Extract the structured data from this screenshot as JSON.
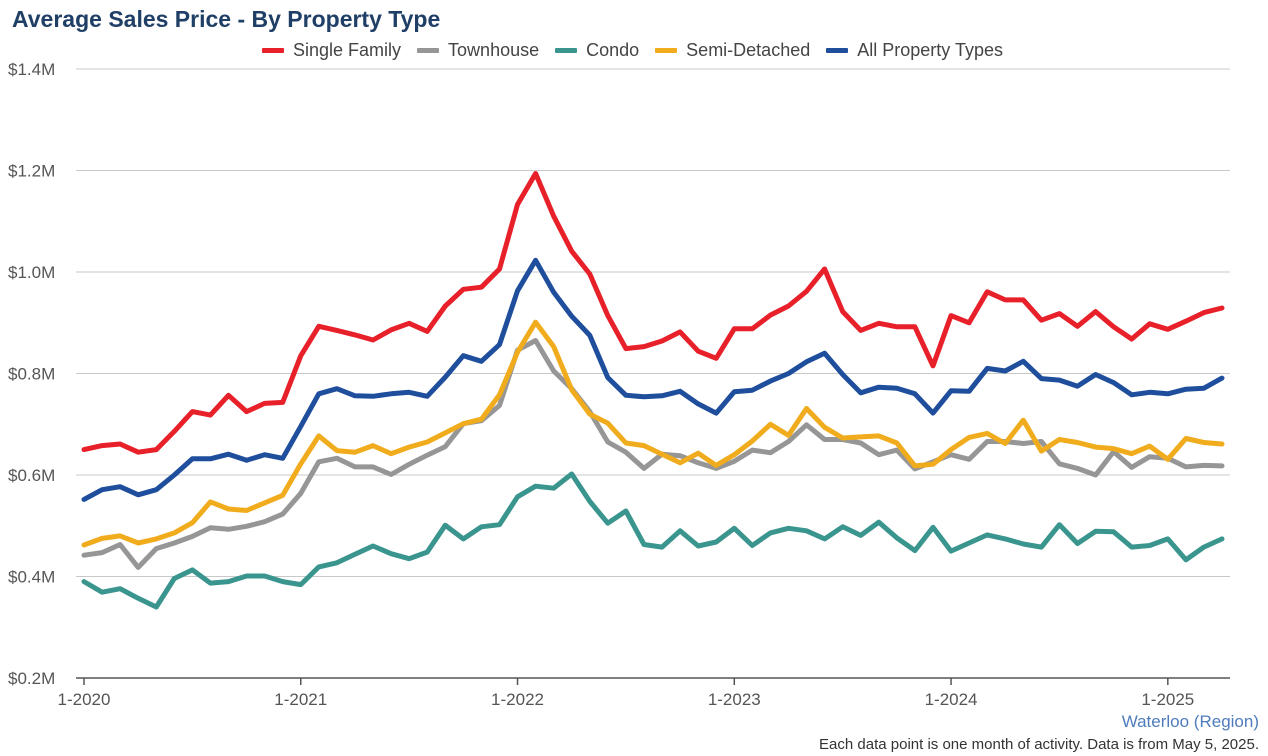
{
  "chart_data": {
    "type": "line",
    "title": "Average Sales Price - By Property Type",
    "xlabel": "",
    "ylabel": "",
    "ylim": [
      200000,
      1400000
    ],
    "y_ticks": [
      {
        "value": 1400000,
        "label": "$1.4M"
      },
      {
        "value": 1200000,
        "label": "$1.2M"
      },
      {
        "value": 1000000,
        "label": "$1.0M"
      },
      {
        "value": 800000,
        "label": "$0.8M"
      },
      {
        "value": 600000,
        "label": "$0.6M"
      },
      {
        "value": 400000,
        "label": "$0.4M"
      },
      {
        "value": 200000,
        "label": "$0.2M"
      }
    ],
    "x_ticks": [
      {
        "month": "2020-01",
        "label": "1-2020"
      },
      {
        "month": "2021-01",
        "label": "1-2021"
      },
      {
        "month": "2022-01",
        "label": "1-2022"
      },
      {
        "month": "2023-01",
        "label": "1-2023"
      },
      {
        "month": "2024-01",
        "label": "1-2024"
      },
      {
        "month": "2025-01",
        "label": "1-2025"
      }
    ],
    "grid": "horizontal",
    "legend_position": "top",
    "months": [
      "2020-01",
      "2020-02",
      "2020-03",
      "2020-04",
      "2020-05",
      "2020-06",
      "2020-07",
      "2020-08",
      "2020-09",
      "2020-10",
      "2020-11",
      "2020-12",
      "2021-01",
      "2021-02",
      "2021-03",
      "2021-04",
      "2021-05",
      "2021-06",
      "2021-07",
      "2021-08",
      "2021-09",
      "2021-10",
      "2021-11",
      "2021-12",
      "2022-01",
      "2022-02",
      "2022-03",
      "2022-04",
      "2022-05",
      "2022-06",
      "2022-07",
      "2022-08",
      "2022-09",
      "2022-10",
      "2022-11",
      "2022-12",
      "2023-01",
      "2023-02",
      "2023-03",
      "2023-04",
      "2023-05",
      "2023-06",
      "2023-07",
      "2023-08",
      "2023-09",
      "2023-10",
      "2023-11",
      "2023-12",
      "2024-01",
      "2024-02",
      "2024-03",
      "2024-04",
      "2024-05",
      "2024-06",
      "2024-07",
      "2024-08",
      "2024-09",
      "2024-10",
      "2024-11",
      "2024-12",
      "2025-01",
      "2025-02",
      "2025-03",
      "2025-04"
    ],
    "series": [
      {
        "name": "Single Family",
        "color": "#e8202a",
        "values": [
          650000,
          658000,
          661000,
          645000,
          650000,
          686000,
          725000,
          718000,
          757000,
          725000,
          741000,
          743000,
          835000,
          893000,
          885000,
          876000,
          866000,
          886000,
          899000,
          883000,
          933000,
          966000,
          970000,
          1006000,
          1133000,
          1194000,
          1110000,
          1041000,
          996000,
          914000,
          849000,
          853000,
          864000,
          882000,
          844000,
          830000,
          888000,
          888000,
          915000,
          933000,
          962000,
          1006000,
          922000,
          885000,
          899000,
          892000,
          892000,
          815000,
          914000,
          900000,
          961000,
          945000,
          945000,
          905000,
          918000,
          893000,
          922000,
          892000,
          868000,
          898000,
          887000,
          903000,
          920000,
          929000
        ]
      },
      {
        "name": "Townhouse",
        "color": "#969696",
        "values": [
          442000,
          447000,
          463000,
          418000,
          455000,
          466000,
          479000,
          496000,
          493000,
          499000,
          508000,
          523000,
          564000,
          626000,
          633000,
          616000,
          616000,
          601000,
          621000,
          639000,
          656000,
          701000,
          707000,
          737000,
          846000,
          865000,
          805000,
          770000,
          725000,
          665000,
          645000,
          613000,
          641000,
          638000,
          624000,
          613000,
          627000,
          649000,
          644000,
          666000,
          699000,
          670000,
          670000,
          663000,
          640000,
          649000,
          612000,
          626000,
          640000,
          631000,
          666000,
          666000,
          662000,
          666000,
          622000,
          613000,
          600000,
          646000,
          615000,
          636000,
          633000,
          616000,
          619000,
          618000
        ]
      },
      {
        "name": "Condo",
        "color": "#3a958e",
        "values": [
          390000,
          369000,
          376000,
          357000,
          340000,
          396000,
          413000,
          387000,
          390000,
          401000,
          401000,
          390000,
          384000,
          419000,
          427000,
          444000,
          460000,
          445000,
          435000,
          448000,
          501000,
          474000,
          498000,
          502000,
          557000,
          578000,
          574000,
          602000,
          548000,
          505000,
          529000,
          463000,
          458000,
          490000,
          460000,
          468000,
          495000,
          461000,
          486000,
          495000,
          490000,
          474000,
          498000,
          481000,
          507000,
          476000,
          451000,
          497000,
          450000,
          466000,
          482000,
          474000,
          464000,
          458000,
          502000,
          465000,
          489000,
          488000,
          458000,
          461000,
          474000,
          433000,
          458000,
          474000
        ]
      },
      {
        "name": "Semi-Detached",
        "color": "#f0ac1c",
        "values": [
          462000,
          475000,
          480000,
          466000,
          474000,
          486000,
          506000,
          547000,
          533000,
          530000,
          545000,
          560000,
          622000,
          677000,
          648000,
          645000,
          658000,
          642000,
          655000,
          665000,
          683000,
          701000,
          710000,
          758000,
          842000,
          901000,
          853000,
          768000,
          720000,
          702000,
          663000,
          658000,
          641000,
          624000,
          643000,
          619000,
          640000,
          667000,
          700000,
          678000,
          731000,
          694000,
          673000,
          675000,
          677000,
          663000,
          618000,
          621000,
          650000,
          674000,
          682000,
          662000,
          708000,
          647000,
          670000,
          664000,
          655000,
          652000,
          642000,
          657000,
          631000,
          672000,
          664000,
          661000
        ]
      },
      {
        "name": "All Property Types",
        "color": "#1f4e9c",
        "values": [
          552000,
          571000,
          577000,
          561000,
          571000,
          600000,
          632000,
          632000,
          641000,
          629000,
          640000,
          633000,
          696000,
          760000,
          770000,
          756000,
          755000,
          760000,
          763000,
          755000,
          793000,
          835000,
          824000,
          857000,
          963000,
          1023000,
          960000,
          913000,
          875000,
          792000,
          757000,
          754000,
          756000,
          765000,
          740000,
          722000,
          764000,
          767000,
          785000,
          800000,
          823000,
          840000,
          798000,
          762000,
          773000,
          771000,
          760000,
          722000,
          766000,
          765000,
          810000,
          805000,
          824000,
          790000,
          787000,
          775000,
          798000,
          782000,
          758000,
          763000,
          760000,
          769000,
          771000,
          791000
        ]
      }
    ]
  },
  "footer": {
    "source": "Waterloo (Region)",
    "note": "Each data point is one month of activity. Data is from May 5, 2025."
  }
}
